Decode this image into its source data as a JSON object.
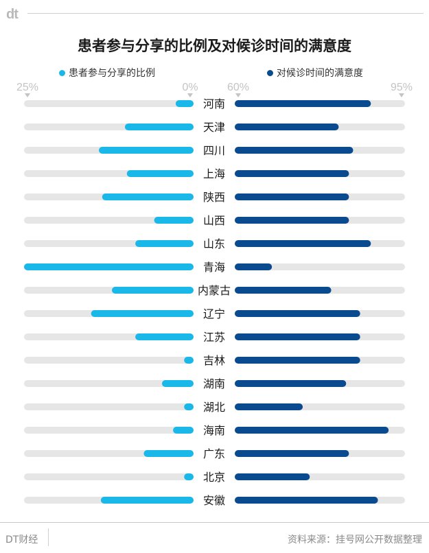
{
  "brand_logo": "dt",
  "footer": {
    "brand": "DT财经",
    "source": "资料来源：挂号网公开数据整理"
  },
  "colors": {
    "left_bar": "#1ab8e8",
    "right_bar": "#0a4a8e",
    "track": "#e6e6e6",
    "axis_label": "#c4c4c4"
  },
  "chart_data": {
    "type": "bar",
    "title": "患者参与分享的比例及对候诊时间的满意度",
    "categories": [
      "河南",
      "天津",
      "四川",
      "上海",
      "陕西",
      "山西",
      "山东",
      "青海",
      "内蒙古",
      "辽宁",
      "江苏",
      "吉林",
      "湖南",
      "湖北",
      "海南",
      "广东",
      "北京",
      "安徽"
    ],
    "series": [
      {
        "name": "患者参与分享的比例",
        "unit": "%",
        "axis_labels": [
          "25%",
          "0%"
        ],
        "xlim": [
          0,
          25
        ],
        "direction": "right-to-left",
        "values": [
          1.7,
          9.5,
          13.5,
          9.2,
          13.0,
          5.0,
          7.9,
          25.0,
          11.5,
          14.7,
          7.9,
          0.4,
          3.8,
          0.4,
          2.1,
          6.6,
          0.4,
          13.2
        ]
      },
      {
        "name": "对候诊时间的满意度",
        "unit": "%",
        "axis_labels": [
          "60%",
          "95%"
        ],
        "xlim": [
          60,
          95
        ],
        "direction": "left-to-right",
        "values": [
          87.7,
          80.8,
          83.9,
          83.0,
          83.0,
          83.0,
          87.7,
          66.5,
          79.2,
          85.4,
          85.4,
          85.4,
          82.4,
          73.1,
          91.5,
          83.0,
          74.6,
          89.2
        ]
      }
    ]
  }
}
